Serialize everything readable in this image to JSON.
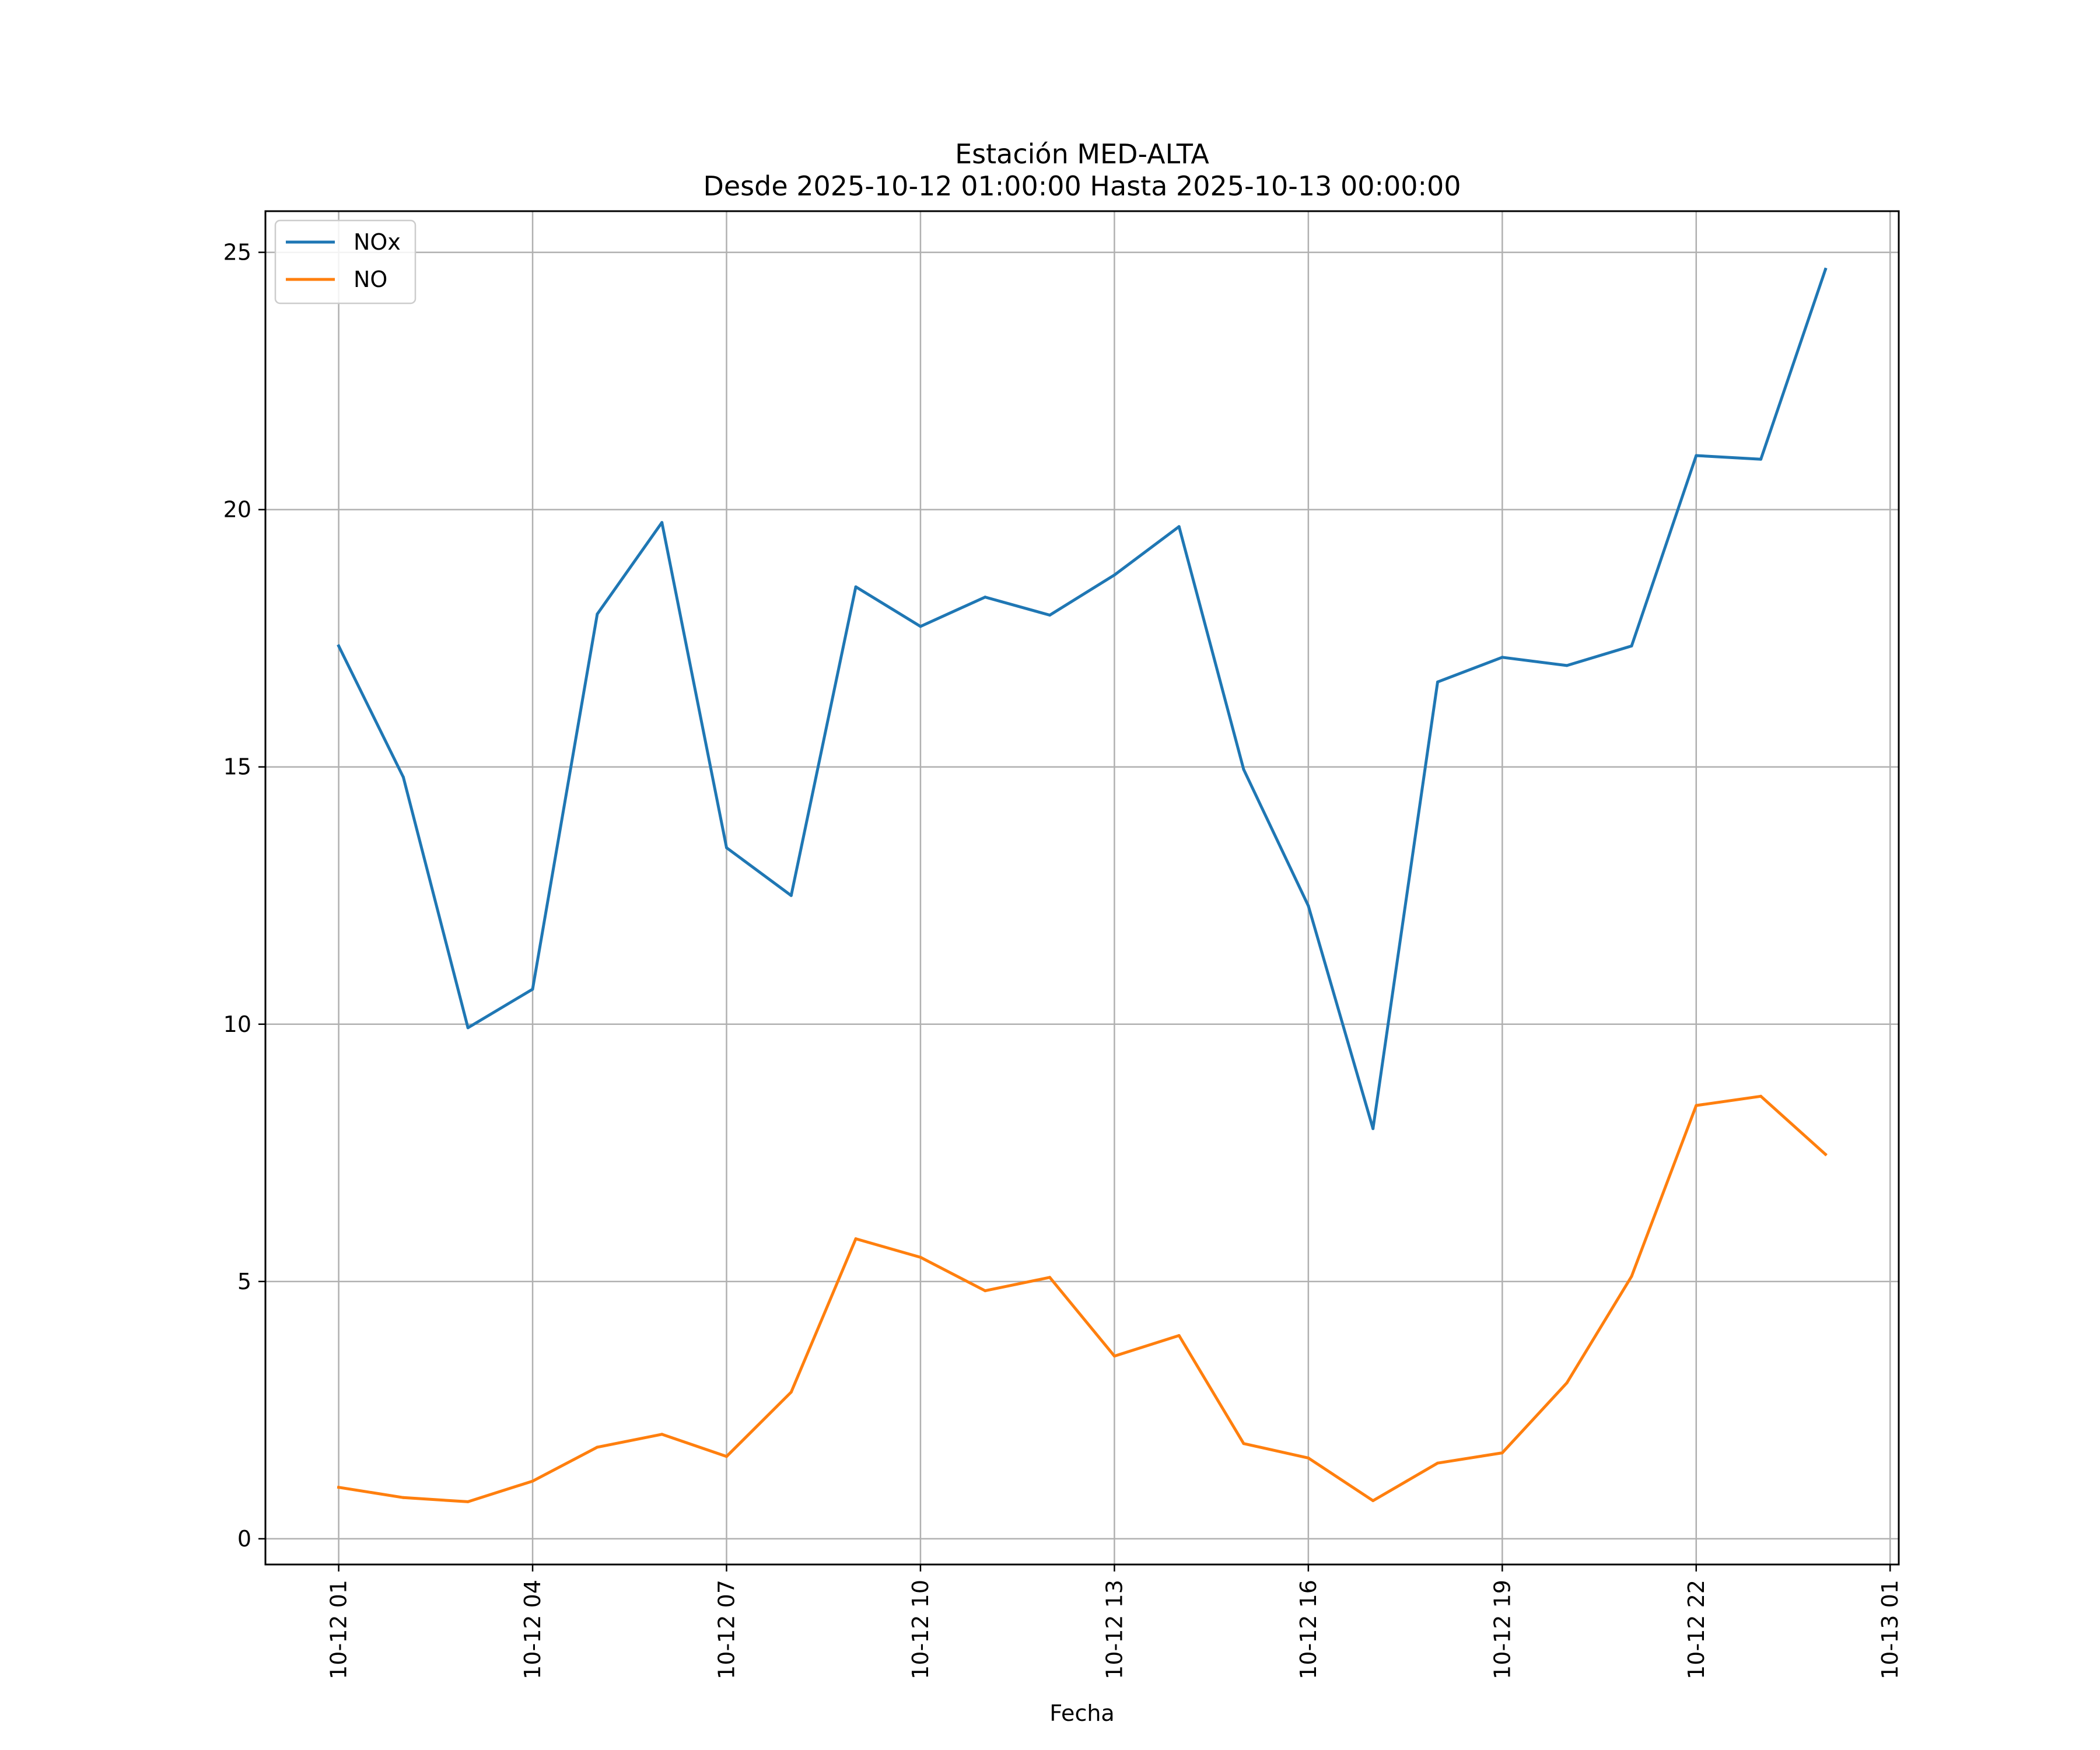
{
  "chart_data": {
    "type": "line",
    "title": "Estación MED-ALTA",
    "subtitle": "Desde 2025-10-12 01:00:00 Hasta 2025-10-13 00:00:00",
    "xlabel": "Fecha",
    "ylabel": "",
    "x": [
      "2025-10-12 01:00",
      "2025-10-12 02:00",
      "2025-10-12 03:00",
      "2025-10-12 04:00",
      "2025-10-12 05:00",
      "2025-10-12 06:00",
      "2025-10-12 07:00",
      "2025-10-12 08:00",
      "2025-10-12 09:00",
      "2025-10-12 10:00",
      "2025-10-12 11:00",
      "2025-10-12 12:00",
      "2025-10-12 13:00",
      "2025-10-12 14:00",
      "2025-10-12 15:00",
      "2025-10-12 16:00",
      "2025-10-12 17:00",
      "2025-10-12 18:00",
      "2025-10-12 19:00",
      "2025-10-12 20:00",
      "2025-10-12 21:00",
      "2025-10-12 22:00",
      "2025-10-12 23:00",
      "2025-10-13 00:00"
    ],
    "series": [
      {
        "name": "NOx",
        "color": "#1f77b4",
        "values": [
          17.35,
          14.8,
          9.93,
          10.68,
          17.97,
          19.75,
          13.43,
          12.5,
          18.5,
          17.73,
          18.3,
          17.95,
          18.73,
          19.67,
          14.95,
          12.3,
          7.97,
          16.65,
          17.13,
          16.97,
          17.35,
          21.05,
          20.98,
          24.67
        ]
      },
      {
        "name": "NO",
        "color": "#ff7f0e",
        "values": [
          1.0,
          0.8,
          0.72,
          1.12,
          1.78,
          2.03,
          1.6,
          2.85,
          5.83,
          5.47,
          4.82,
          5.08,
          3.55,
          3.95,
          1.85,
          1.57,
          0.74,
          1.47,
          1.67,
          3.03,
          5.1,
          8.42,
          8.6,
          7.47
        ]
      }
    ],
    "x_ticks": [
      "10-12 01",
      "10-12 04",
      "10-12 07",
      "10-12 10",
      "10-12 13",
      "10-12 16",
      "10-12 19",
      "10-12 22",
      "10-13 01"
    ],
    "x_tick_values": [
      "2025-10-12 01:00",
      "2025-10-12 04:00",
      "2025-10-12 07:00",
      "2025-10-12 10:00",
      "2025-10-12 13:00",
      "2025-10-12 16:00",
      "2025-10-12 19:00",
      "2025-10-12 22:00",
      "2025-10-13 01:00"
    ],
    "xlim": [
      "2025-10-11 23:52",
      "2025-10-13 01:08"
    ],
    "y_ticks": [
      0,
      5,
      10,
      15,
      20,
      25
    ],
    "ylim": [
      -0.5,
      25.8
    ],
    "grid": true,
    "legend_position": "top-left"
  }
}
